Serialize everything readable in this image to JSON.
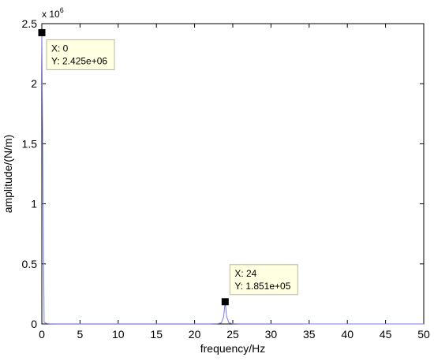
{
  "chart_data": {
    "type": "line",
    "xlabel": "frequency/Hz",
    "ylabel": "amplitude/(N/m)",
    "y_exponent_label": "x 10",
    "y_exponent_power": "6",
    "xlim": [
      0,
      50
    ],
    "ylim": [
      0,
      2500000
    ],
    "x_ticks": [
      0,
      5,
      10,
      15,
      20,
      25,
      30,
      35,
      40,
      45,
      50
    ],
    "x_tick_labels": [
      "0",
      "5",
      "10",
      "15",
      "20",
      "25",
      "30",
      "35",
      "40",
      "45",
      "50"
    ],
    "y_ticks": [
      0,
      500000,
      1000000,
      1500000,
      2000000,
      2500000
    ],
    "y_tick_labels": [
      "0",
      "0.5",
      "1",
      "1.5",
      "2",
      "2.5"
    ],
    "grid": false,
    "line_color": "#7b7bf0",
    "series": [
      {
        "x": [
          0,
          0.3,
          0.6,
          1,
          2,
          5,
          10,
          15,
          20,
          22,
          23,
          23.5,
          23.8,
          24,
          24.2,
          24.5,
          25,
          26,
          30,
          35,
          40,
          45,
          50
        ],
        "values": [
          2425000,
          15000,
          4000,
          2000,
          1000,
          800,
          500,
          500,
          600,
          900,
          2500,
          9000,
          60000,
          185100,
          60000,
          9000,
          2500,
          900,
          500,
          400,
          300,
          300,
          300
        ]
      }
    ],
    "datatips": [
      {
        "x": 0,
        "y": 2425000,
        "line1": "X: 0",
        "line2": "Y: 2.425e+06"
      },
      {
        "x": 24,
        "y": 185100,
        "line1": "X: 24",
        "line2": "Y: 1.851e+05"
      }
    ]
  }
}
